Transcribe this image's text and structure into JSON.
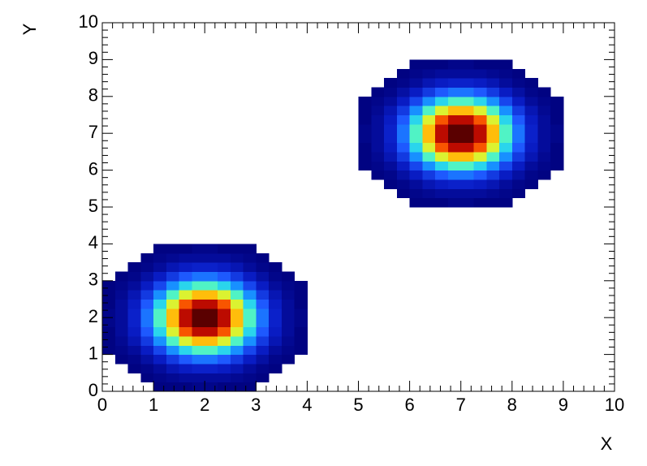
{
  "chart_data": {
    "type": "heatmap",
    "x_label": "X",
    "y_label": "Y",
    "xlim": [
      0,
      10
    ],
    "ylim": [
      0,
      10
    ],
    "xticks": [
      0,
      1,
      2,
      3,
      4,
      5,
      6,
      7,
      8,
      9,
      10
    ],
    "yticks": [
      0,
      1,
      2,
      3,
      4,
      5,
      6,
      7,
      8,
      9,
      10
    ],
    "colors": [
      "#00007a",
      "#0a1ec8",
      "#1e5aff",
      "#14b4ff",
      "#3cf0dc",
      "#b4ff50",
      "#ffe614",
      "#ff8c00",
      "#f01e00",
      "#a00000",
      "#5a0000"
    ],
    "values": [
      [
        0,
        0,
        0,
        0,
        1,
        1,
        1,
        2,
        2,
        1,
        1,
        1,
        0,
        0,
        0,
        0,
        0,
        0,
        0,
        0,
        0,
        0,
        0,
        0,
        0,
        0,
        0,
        0,
        0,
        0,
        0,
        0,
        0,
        0,
        0,
        0,
        0,
        0,
        0,
        0
      ],
      [
        0,
        0,
        0,
        1,
        2,
        3,
        4,
        4,
        4,
        4,
        3,
        2,
        1,
        0,
        0,
        0,
        0,
        0,
        0,
        0,
        0,
        0,
        0,
        0,
        0,
        0,
        0,
        0,
        0,
        0,
        0,
        0,
        0,
        0,
        0,
        0,
        0,
        0,
        0,
        0
      ],
      [
        0,
        0,
        1,
        2,
        4,
        7,
        9,
        10,
        10,
        9,
        7,
        4,
        2,
        1,
        0,
        0,
        0,
        0,
        0,
        0,
        0,
        0,
        0,
        0,
        0,
        0,
        0,
        0,
        0,
        0,
        0,
        0,
        0,
        0,
        0,
        0,
        0,
        0,
        0,
        0
      ],
      [
        0,
        1,
        2,
        5,
        9,
        14,
        19,
        22,
        22,
        19,
        14,
        9,
        5,
        2,
        1,
        0,
        0,
        0,
        0,
        0,
        0,
        0,
        0,
        0,
        0,
        0,
        0,
        0,
        0,
        0,
        0,
        0,
        0,
        0,
        0,
        0,
        0,
        0,
        0,
        0
      ],
      [
        1,
        2,
        4,
        9,
        16,
        25,
        34,
        40,
        40,
        34,
        25,
        16,
        9,
        4,
        2,
        1,
        0,
        0,
        0,
        0,
        0,
        0,
        0,
        0,
        0,
        0,
        0,
        0,
        0,
        0,
        0,
        0,
        0,
        0,
        0,
        0,
        0,
        0,
        0,
        0
      ],
      [
        1,
        3,
        7,
        14,
        25,
        40,
        53,
        62,
        62,
        53,
        40,
        25,
        14,
        7,
        3,
        1,
        0,
        0,
        0,
        0,
        0,
        0,
        0,
        0,
        0,
        0,
        0,
        0,
        0,
        0,
        0,
        0,
        0,
        0,
        0,
        0,
        0,
        0,
        0,
        0
      ],
      [
        1,
        4,
        9,
        19,
        34,
        53,
        72,
        83,
        83,
        72,
        53,
        34,
        19,
        9,
        4,
        1,
        0,
        0,
        0,
        0,
        0,
        0,
        0,
        0,
        0,
        0,
        0,
        0,
        0,
        0,
        0,
        0,
        0,
        0,
        0,
        0,
        0,
        0,
        0,
        0
      ],
      [
        2,
        4,
        10,
        22,
        40,
        62,
        83,
        96,
        96,
        83,
        62,
        40,
        22,
        10,
        4,
        2,
        0,
        0,
        0,
        0,
        0,
        0,
        0,
        0,
        0,
        0,
        0,
        0,
        0,
        0,
        0,
        0,
        0,
        0,
        0,
        0,
        0,
        0,
        0,
        0
      ],
      [
        2,
        4,
        10,
        22,
        40,
        62,
        83,
        96,
        96,
        83,
        62,
        40,
        22,
        10,
        4,
        2,
        0,
        0,
        0,
        0,
        0,
        0,
        0,
        0,
        0,
        0,
        0,
        0,
        0,
        0,
        0,
        0,
        0,
        0,
        0,
        0,
        0,
        0,
        0,
        0
      ],
      [
        1,
        4,
        9,
        19,
        34,
        53,
        72,
        83,
        83,
        72,
        53,
        34,
        19,
        9,
        4,
        1,
        0,
        0,
        0,
        0,
        0,
        0,
        0,
        0,
        0,
        0,
        0,
        0,
        0,
        0,
        0,
        0,
        0,
        0,
        0,
        0,
        0,
        0,
        0,
        0
      ],
      [
        1,
        3,
        7,
        14,
        25,
        40,
        53,
        62,
        62,
        53,
        40,
        25,
        14,
        7,
        3,
        1,
        0,
        0,
        0,
        0,
        0,
        0,
        0,
        0,
        0,
        0,
        0,
        0,
        0,
        0,
        0,
        0,
        0,
        0,
        0,
        0,
        0,
        0,
        0,
        0
      ],
      [
        1,
        2,
        4,
        9,
        16,
        25,
        34,
        40,
        40,
        34,
        25,
        16,
        9,
        4,
        2,
        1,
        0,
        0,
        0,
        0,
        0,
        0,
        0,
        0,
        0,
        0,
        0,
        0,
        0,
        0,
        0,
        0,
        0,
        0,
        0,
        0,
        0,
        0,
        0,
        0
      ],
      [
        0,
        1,
        2,
        5,
        9,
        14,
        19,
        22,
        22,
        19,
        14,
        9,
        5,
        2,
        1,
        0,
        0,
        0,
        0,
        0,
        0,
        0,
        0,
        0,
        0,
        0,
        0,
        0,
        0,
        0,
        0,
        0,
        0,
        0,
        0,
        0,
        0,
        0,
        0,
        0
      ],
      [
        0,
        0,
        1,
        2,
        4,
        7,
        9,
        10,
        10,
        9,
        7,
        4,
        2,
        1,
        0,
        0,
        0,
        0,
        0,
        0,
        0,
        0,
        0,
        0,
        0,
        0,
        0,
        0,
        0,
        0,
        0,
        0,
        0,
        0,
        0,
        0,
        0,
        0,
        0,
        0
      ],
      [
        0,
        0,
        0,
        1,
        2,
        3,
        4,
        4,
        4,
        4,
        3,
        2,
        1,
        0,
        0,
        0,
        0,
        0,
        0,
        0,
        0,
        0,
        0,
        0,
        0,
        0,
        0,
        0,
        0,
        0,
        0,
        0,
        0,
        0,
        0,
        0,
        0,
        0,
        0,
        0
      ],
      [
        0,
        0,
        0,
        0,
        1,
        1,
        1,
        2,
        2,
        1,
        1,
        1,
        0,
        0,
        0,
        0,
        0,
        0,
        0,
        0,
        0,
        0,
        0,
        0,
        0,
        0,
        0,
        0,
        0,
        0,
        0,
        0,
        0,
        0,
        0,
        0,
        0,
        0,
        0,
        0
      ],
      [
        0,
        0,
        0,
        0,
        0,
        0,
        0,
        0,
        0,
        0,
        0,
        0,
        0,
        0,
        0,
        0,
        0,
        0,
        0,
        0,
        0,
        0,
        0,
        0,
        0,
        0,
        0,
        0,
        0,
        0,
        0,
        0,
        0,
        0,
        0,
        0,
        0,
        0,
        0,
        0
      ],
      [
        0,
        0,
        0,
        0,
        0,
        0,
        0,
        0,
        0,
        0,
        0,
        0,
        0,
        0,
        0,
        0,
        0,
        0,
        0,
        0,
        0,
        0,
        0,
        0,
        0,
        0,
        0,
        0,
        0,
        0,
        0,
        0,
        0,
        0,
        0,
        0,
        0,
        0,
        0,
        0
      ],
      [
        0,
        0,
        0,
        0,
        0,
        0,
        0,
        0,
        0,
        0,
        0,
        0,
        0,
        0,
        0,
        0,
        0,
        0,
        0,
        0,
        0,
        0,
        0,
        0,
        0,
        0,
        0,
        0,
        0,
        0,
        0,
        0,
        0,
        0,
        0,
        0,
        0,
        0,
        0,
        0
      ],
      [
        0,
        0,
        0,
        0,
        0,
        0,
        0,
        0,
        0,
        0,
        0,
        0,
        0,
        0,
        0,
        0,
        0,
        0,
        0,
        0,
        0,
        0,
        0,
        0,
        0,
        0,
        0,
        0,
        0,
        0,
        0,
        0,
        0,
        0,
        0,
        0,
        0,
        0,
        0,
        0
      ],
      [
        0,
        0,
        0,
        0,
        0,
        0,
        0,
        0,
        0,
        0,
        0,
        0,
        0,
        0,
        0,
        0,
        0,
        0,
        0,
        0,
        0,
        0,
        0,
        0,
        1,
        1,
        1,
        2,
        2,
        1,
        1,
        1,
        0,
        0,
        0,
        0,
        0,
        0,
        0,
        0
      ],
      [
        0,
        0,
        0,
        0,
        0,
        0,
        0,
        0,
        0,
        0,
        0,
        0,
        0,
        0,
        0,
        0,
        0,
        0,
        0,
        0,
        0,
        0,
        0,
        1,
        2,
        3,
        4,
        4,
        4,
        4,
        3,
        2,
        1,
        0,
        0,
        0,
        0,
        0,
        0,
        0
      ],
      [
        0,
        0,
        0,
        0,
        0,
        0,
        0,
        0,
        0,
        0,
        0,
        0,
        0,
        0,
        0,
        0,
        0,
        0,
        0,
        0,
        0,
        0,
        1,
        2,
        4,
        7,
        9,
        10,
        10,
        9,
        7,
        4,
        2,
        1,
        0,
        0,
        0,
        0,
        0,
        0
      ],
      [
        0,
        0,
        0,
        0,
        0,
        0,
        0,
        0,
        0,
        0,
        0,
        0,
        0,
        0,
        0,
        0,
        0,
        0,
        0,
        0,
        0,
        1,
        2,
        5,
        9,
        14,
        19,
        22,
        22,
        19,
        14,
        9,
        5,
        2,
        1,
        0,
        0,
        0,
        0,
        0
      ],
      [
        0,
        0,
        0,
        0,
        0,
        0,
        0,
        0,
        0,
        0,
        0,
        0,
        0,
        0,
        0,
        0,
        0,
        0,
        0,
        0,
        1,
        2,
        4,
        9,
        16,
        25,
        34,
        40,
        40,
        34,
        25,
        16,
        9,
        4,
        2,
        1,
        0,
        0,
        0,
        0
      ],
      [
        0,
        0,
        0,
        0,
        0,
        0,
        0,
        0,
        0,
        0,
        0,
        0,
        0,
        0,
        0,
        0,
        0,
        0,
        0,
        0,
        1,
        3,
        7,
        14,
        25,
        40,
        53,
        62,
        62,
        53,
        40,
        25,
        14,
        7,
        3,
        1,
        0,
        0,
        0,
        0
      ],
      [
        0,
        0,
        0,
        0,
        0,
        0,
        0,
        0,
        0,
        0,
        0,
        0,
        0,
        0,
        0,
        0,
        0,
        0,
        0,
        0,
        1,
        4,
        9,
        19,
        34,
        53,
        72,
        83,
        83,
        72,
        53,
        34,
        19,
        9,
        4,
        1,
        0,
        0,
        0,
        0
      ],
      [
        0,
        0,
        0,
        0,
        0,
        0,
        0,
        0,
        0,
        0,
        0,
        0,
        0,
        0,
        0,
        0,
        0,
        0,
        0,
        0,
        2,
        4,
        10,
        22,
        40,
        62,
        83,
        96,
        96,
        83,
        62,
        40,
        22,
        10,
        4,
        2,
        0,
        0,
        0,
        0
      ],
      [
        0,
        0,
        0,
        0,
        0,
        0,
        0,
        0,
        0,
        0,
        0,
        0,
        0,
        0,
        0,
        0,
        0,
        0,
        0,
        0,
        2,
        4,
        10,
        22,
        40,
        62,
        83,
        96,
        96,
        83,
        62,
        40,
        22,
        10,
        4,
        2,
        0,
        0,
        0,
        0
      ],
      [
        0,
        0,
        0,
        0,
        0,
        0,
        0,
        0,
        0,
        0,
        0,
        0,
        0,
        0,
        0,
        0,
        0,
        0,
        0,
        0,
        1,
        4,
        9,
        19,
        34,
        53,
        72,
        83,
        83,
        72,
        53,
        34,
        19,
        9,
        4,
        1,
        0,
        0,
        0,
        0
      ],
      [
        0,
        0,
        0,
        0,
        0,
        0,
        0,
        0,
        0,
        0,
        0,
        0,
        0,
        0,
        0,
        0,
        0,
        0,
        0,
        0,
        1,
        3,
        7,
        14,
        25,
        40,
        53,
        62,
        62,
        53,
        40,
        25,
        14,
        7,
        3,
        1,
        0,
        0,
        0,
        0
      ],
      [
        0,
        0,
        0,
        0,
        0,
        0,
        0,
        0,
        0,
        0,
        0,
        0,
        0,
        0,
        0,
        0,
        0,
        0,
        0,
        0,
        1,
        2,
        4,
        9,
        16,
        25,
        34,
        40,
        40,
        34,
        25,
        16,
        9,
        4,
        2,
        1,
        0,
        0,
        0,
        0
      ],
      [
        0,
        0,
        0,
        0,
        0,
        0,
        0,
        0,
        0,
        0,
        0,
        0,
        0,
        0,
        0,
        0,
        0,
        0,
        0,
        0,
        0,
        1,
        2,
        5,
        9,
        14,
        19,
        22,
        22,
        19,
        14,
        9,
        5,
        2,
        1,
        0,
        0,
        0,
        0,
        0
      ],
      [
        0,
        0,
        0,
        0,
        0,
        0,
        0,
        0,
        0,
        0,
        0,
        0,
        0,
        0,
        0,
        0,
        0,
        0,
        0,
        0,
        0,
        0,
        1,
        2,
        4,
        7,
        9,
        10,
        10,
        9,
        7,
        4,
        2,
        1,
        0,
        0,
        0,
        0,
        0,
        0
      ],
      [
        0,
        0,
        0,
        0,
        0,
        0,
        0,
        0,
        0,
        0,
        0,
        0,
        0,
        0,
        0,
        0,
        0,
        0,
        0,
        0,
        0,
        0,
        0,
        1,
        2,
        3,
        4,
        4,
        4,
        4,
        3,
        2,
        1,
        0,
        0,
        0,
        0,
        0,
        0,
        0
      ],
      [
        0,
        0,
        0,
        0,
        0,
        0,
        0,
        0,
        0,
        0,
        0,
        0,
        0,
        0,
        0,
        0,
        0,
        0,
        0,
        0,
        0,
        0,
        0,
        0,
        1,
        1,
        1,
        2,
        2,
        1,
        1,
        1,
        0,
        0,
        0,
        0,
        0,
        0,
        0,
        0
      ],
      [
        0,
        0,
        0,
        0,
        0,
        0,
        0,
        0,
        0,
        0,
        0,
        0,
        0,
        0,
        0,
        0,
        0,
        0,
        0,
        0,
        0,
        0,
        0,
        0,
        0,
        0,
        0,
        0,
        0,
        0,
        0,
        0,
        0,
        0,
        0,
        0,
        0,
        0,
        0,
        0
      ],
      [
        0,
        0,
        0,
        0,
        0,
        0,
        0,
        0,
        0,
        0,
        0,
        0,
        0,
        0,
        0,
        0,
        0,
        0,
        0,
        0,
        0,
        0,
        0,
        0,
        0,
        0,
        0,
        0,
        0,
        0,
        0,
        0,
        0,
        0,
        0,
        0,
        0,
        0,
        0,
        0
      ],
      [
        0,
        0,
        0,
        0,
        0,
        0,
        0,
        0,
        0,
        0,
        0,
        0,
        0,
        0,
        0,
        0,
        0,
        0,
        0,
        0,
        0,
        0,
        0,
        0,
        0,
        0,
        0,
        0,
        0,
        0,
        0,
        0,
        0,
        0,
        0,
        0,
        0,
        0,
        0,
        0
      ],
      [
        0,
        0,
        0,
        0,
        0,
        0,
        0,
        0,
        0,
        0,
        0,
        0,
        0,
        0,
        0,
        0,
        0,
        0,
        0,
        0,
        0,
        0,
        0,
        0,
        0,
        0,
        0,
        0,
        0,
        0,
        0,
        0,
        0,
        0,
        0,
        0,
        0,
        0,
        0,
        0
      ]
    ]
  }
}
